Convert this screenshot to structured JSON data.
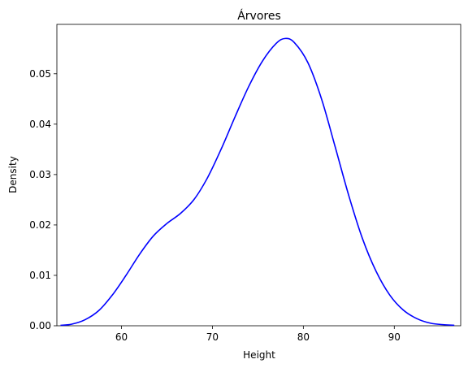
{
  "chart_data": {
    "type": "line",
    "title": "Árvores",
    "xlabel": "Height",
    "ylabel": "Density",
    "xlim": [
      52.9,
      97.3
    ],
    "ylim": [
      0,
      0.0598
    ],
    "xticks": [
      60,
      70,
      80,
      90
    ],
    "xtick_labels": [
      "60",
      "70",
      "80",
      "90"
    ],
    "yticks": [
      0,
      0.01,
      0.02,
      0.03,
      0.04,
      0.05
    ],
    "ytick_labels": [
      "0.00",
      "0.01",
      "0.02",
      "0.03",
      "0.04",
      "0.05"
    ],
    "grid": false,
    "series": [
      {
        "color": "#0000ff",
        "x": [
          53.3,
          54.5,
          56,
          57.5,
          59,
          60.5,
          62,
          63.5,
          65,
          66.5,
          68,
          69.5,
          71,
          72.5,
          74,
          75.5,
          77,
          78,
          79,
          80.5,
          82,
          83.5,
          85,
          86.5,
          88,
          89.5,
          91,
          92.5,
          94,
          95.5,
          96.6
        ],
        "y": [
          0.0001,
          0.0003,
          0.0012,
          0.003,
          0.0061,
          0.01,
          0.0142,
          0.0178,
          0.0203,
          0.0223,
          0.0251,
          0.0295,
          0.0352,
          0.0415,
          0.0475,
          0.0525,
          0.056,
          0.057,
          0.0562,
          0.0522,
          0.045,
          0.0355,
          0.0258,
          0.0173,
          0.0108,
          0.0061,
          0.0031,
          0.0014,
          0.0005,
          0.0002,
          0.0001
        ]
      }
    ]
  }
}
